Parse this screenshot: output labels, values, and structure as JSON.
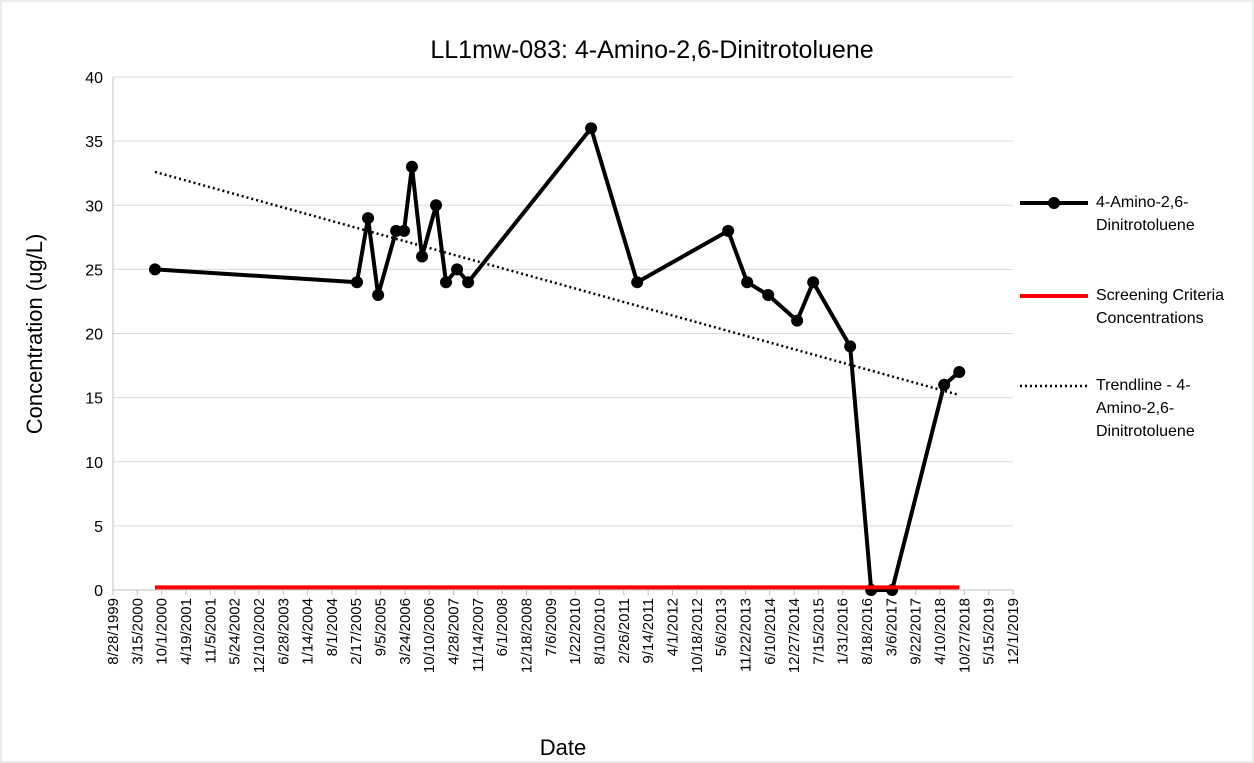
{
  "chart_data": {
    "type": "line",
    "title": "LL1mw-083: 4-Amino-2,6-Dinitrotoluene",
    "xlabel": "Date",
    "ylabel": "Concentration (ug/L)",
    "xlim": [
      "8/28/1999",
      "12/1/2019"
    ],
    "xticks": [
      "8/28/1999",
      "3/15/2000",
      "10/1/2000",
      "4/19/2001",
      "11/5/2001",
      "5/24/2002",
      "12/10/2002",
      "6/28/2003",
      "1/14/2004",
      "8/1/2004",
      "2/17/2005",
      "9/5/2005",
      "3/24/2006",
      "10/10/2006",
      "4/28/2007",
      "11/14/2007",
      "6/1/2008",
      "12/18/2008",
      "7/6/2009",
      "1/22/2010",
      "8/10/2010",
      "2/26/2011",
      "9/14/2011",
      "4/1/2012",
      "10/18/2012",
      "5/6/2013",
      "11/22/2013",
      "6/10/2014",
      "12/27/2014",
      "7/15/2015",
      "1/31/2016",
      "8/18/2016",
      "3/6/2017",
      "9/22/2017",
      "4/10/2018",
      "10/27/2018",
      "5/15/2019",
      "12/1/2019"
    ],
    "ylim": [
      0,
      40
    ],
    "yticks": [
      0,
      5,
      10,
      15,
      20,
      25,
      30,
      35,
      40
    ],
    "grid": true,
    "legend": "right",
    "series": [
      {
        "name": "4-Amino-2,6-Dinitrotoluene",
        "color": "#000000",
        "style": "solid-markers",
        "x": [
          "8/7/2000",
          "2/23/2005",
          "5/25/2005",
          "8/16/2005",
          "1/11/2006",
          "3/17/2006",
          "5/21/2006",
          "8/12/2006",
          "12/5/2006",
          "2/25/2007",
          "5/27/2007",
          "8/26/2007",
          "6/2/2010",
          "6/16/2011",
          "7/3/2013",
          "12/6/2013",
          "5/28/2014",
          "1/21/2015",
          "6/2/2015",
          "4/1/2016",
          "9/21/2016",
          "3/12/2017",
          "5/14/2018",
          "9/15/2018"
        ],
        "values": [
          25,
          24,
          29,
          23,
          28,
          28,
          33,
          26,
          30,
          24,
          25,
          24,
          36,
          24,
          28,
          24,
          23,
          21,
          24,
          19,
          0,
          0,
          16,
          17
        ]
      },
      {
        "name": "Screening Criteria Concentrations",
        "color": "#ff0000",
        "style": "solid",
        "x": [
          "8/7/2000",
          "9/15/2018"
        ],
        "values": [
          0.2,
          0.2
        ]
      },
      {
        "name": "Trendline - 4-Amino-2,6-Dinitrotoluene",
        "color": "#000000",
        "style": "dotted",
        "x": [
          "8/7/2000",
          "9/15/2018"
        ],
        "values": [
          32.6,
          15.2
        ]
      }
    ]
  }
}
